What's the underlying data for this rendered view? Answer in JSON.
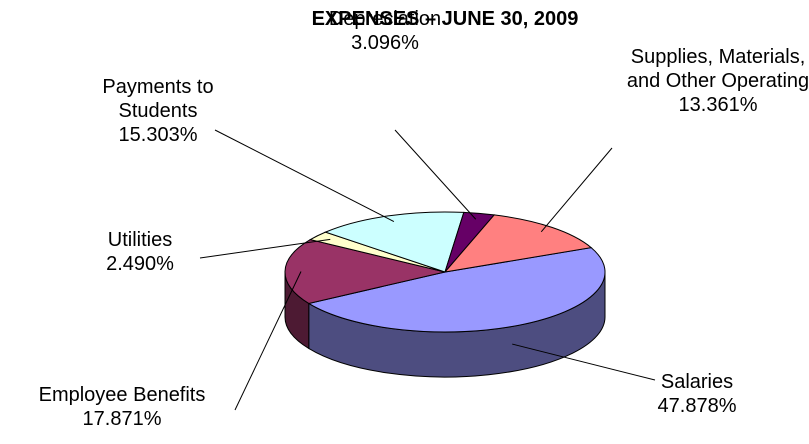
{
  "chart_data": {
    "type": "pie3d",
    "title": "EXPENSES – JUNE 30, 2009",
    "categories": [
      "Salaries",
      "Employee Benefits",
      "Utilities",
      "Payments to Students",
      "Depreciation",
      "Supplies, Materials, and Other Operating"
    ],
    "values": [
      47.878,
      17.871,
      2.49,
      15.303,
      3.096,
      13.361
    ],
    "value_labels": [
      "47.878%",
      "17.871%",
      "2.490%",
      "15.303%",
      "3.096%",
      "13.361%"
    ],
    "colors": [
      "#9999ff",
      "#993366",
      "#ffffcc",
      "#ccffff",
      "#660066",
      "#ff8080"
    ]
  }
}
